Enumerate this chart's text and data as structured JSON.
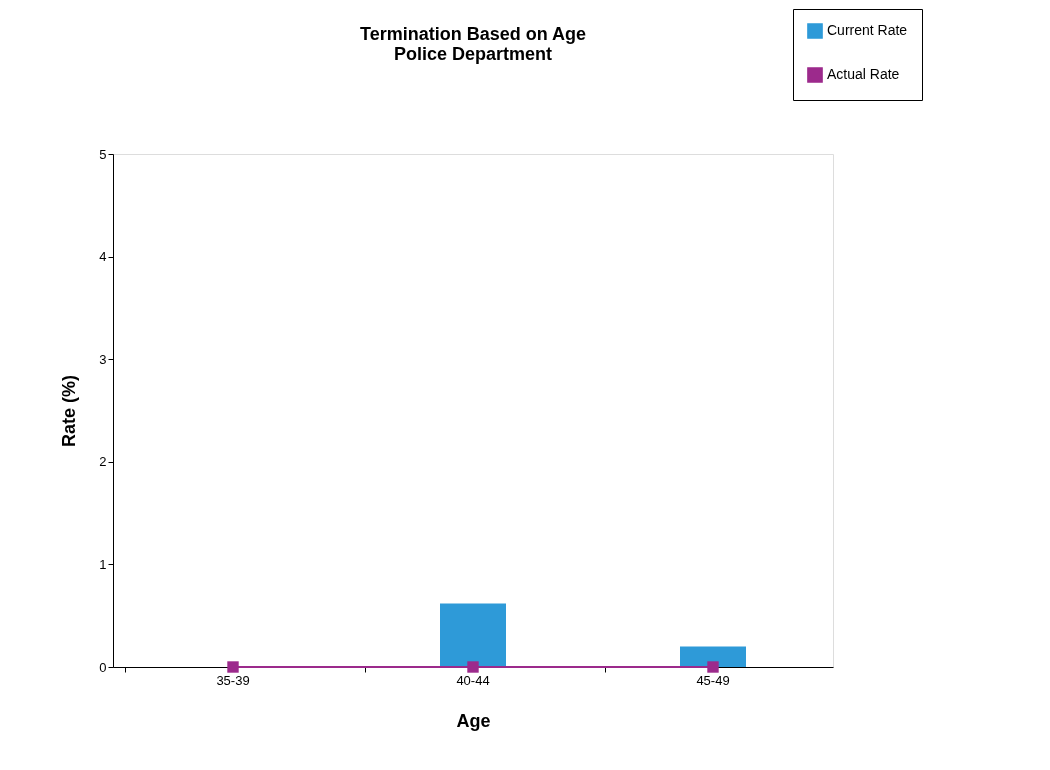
{
  "chart_data": {
    "type": "bar",
    "title": "Termination Based on Age\nPolice Department",
    "xlabel": "Age",
    "ylabel": "Rate (%)",
    "categories": [
      "35-39",
      "40-44",
      "45-49"
    ],
    "series": [
      {
        "name": "Current Rate",
        "color": "#2e9ad8",
        "values": [
          0,
          0.62,
          0.2
        ]
      },
      {
        "name": "Actual Rate",
        "type": "line",
        "color": "#9c2a8c",
        "values": [
          0,
          0,
          0
        ]
      }
    ],
    "ylim": [
      0,
      5
    ],
    "yticks": [
      0,
      1,
      2,
      3,
      4,
      5
    ],
    "grid": false,
    "legend": "top right",
    "marker": "square",
    "line_style": "solid"
  }
}
